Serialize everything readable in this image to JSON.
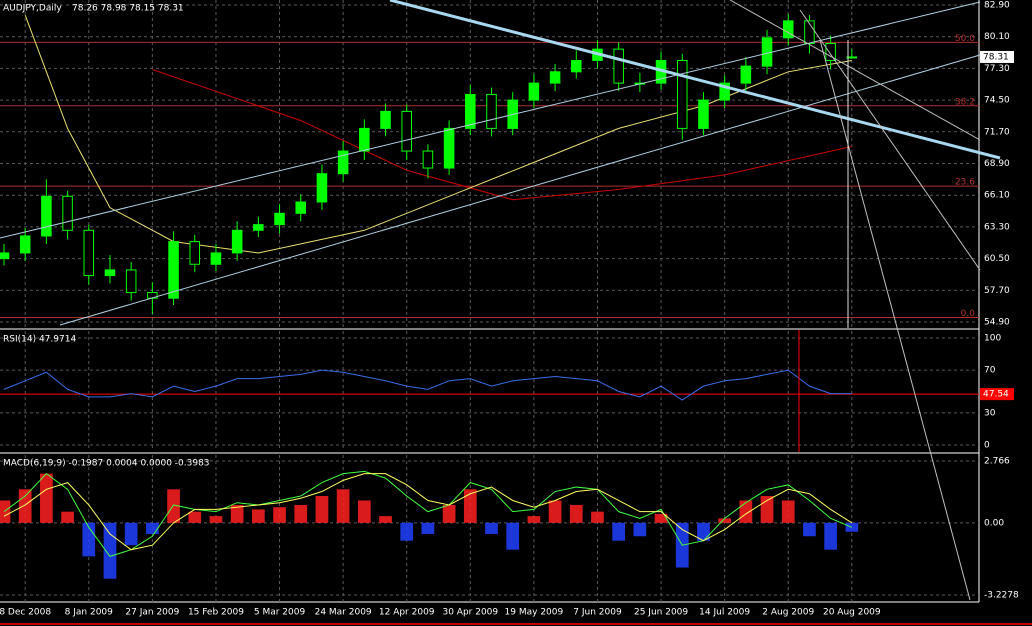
{
  "chart_data": [
    {
      "type": "candlestick",
      "title": "AUDJPY,Daily",
      "ohlc_label": "78.26 78.98 78.15 78.31",
      "up_color": "#00ff00",
      "down_color": "#000000",
      "wick_color": "#00ff00",
      "open": [
        60.5,
        61,
        62.5,
        66,
        63,
        59,
        59.5,
        57.5,
        57,
        62,
        60,
        61,
        63,
        63.5,
        64.5,
        65.5,
        68,
        70,
        72,
        73.5,
        70,
        68.5,
        72,
        75,
        72,
        74.5,
        76,
        77,
        78,
        79,
        76,
        76,
        78,
        72,
        74.5,
        76,
        77.5,
        80,
        81.5,
        79.5,
        78.26
      ],
      "high": [
        61.8,
        63.2,
        67.5,
        66.5,
        63.5,
        60.8,
        60.2,
        58.4,
        62.9,
        62.6,
        61.8,
        63.8,
        64.2,
        65.3,
        66.2,
        68.8,
        70.9,
        72.8,
        74.2,
        74.1,
        70.6,
        72.7,
        75.8,
        75.6,
        75.2,
        76.8,
        77.7,
        78.9,
        79.8,
        79.6,
        76.9,
        78.8,
        78.6,
        75.2,
        76.7,
        78.3,
        80.7,
        82.1,
        82.0,
        80.2,
        78.98
      ],
      "low": [
        59.9,
        60.3,
        61.8,
        62.2,
        58.2,
        58.3,
        56.8,
        55.6,
        56.4,
        59.3,
        59.4,
        60.3,
        62.4,
        62.7,
        63.8,
        64.8,
        67.3,
        69.2,
        71.3,
        69.2,
        67.6,
        67.9,
        71.4,
        71.3,
        71.4,
        73.8,
        75.3,
        76.4,
        77.3,
        75.3,
        75.2,
        75.4,
        71.0,
        71.4,
        73.8,
        75.3,
        76.8,
        79.3,
        78.6,
        77.2,
        78.15
      ],
      "close": [
        61,
        62.5,
        66,
        63,
        59,
        59.5,
        57.5,
        57,
        62,
        60,
        61,
        63,
        63.5,
        64.5,
        65.5,
        68,
        70,
        72,
        73.5,
        70,
        68.5,
        72,
        75,
        72,
        74.5,
        76,
        77,
        78,
        79,
        76,
        76,
        78,
        72,
        74.5,
        76,
        77.5,
        80,
        81.5,
        79.5,
        78,
        78.31
      ],
      "overlays": [
        {
          "color": "#cc0000",
          "x": [
            7,
            14,
            19,
            24,
            29,
            34,
            40
          ],
          "values": [
            77.2,
            72.7,
            68.3,
            65.7,
            66.6,
            67.9,
            70.4
          ]
        },
        {
          "color": "#e8e070",
          "x": [
            1,
            3,
            5,
            8,
            12,
            17,
            21,
            25,
            29,
            33,
            37,
            40
          ],
          "values": [
            82,
            72,
            65,
            62,
            61,
            63,
            66,
            69,
            72,
            74,
            77,
            78
          ]
        }
      ],
      "levels": [
        {
          "value": 79.6,
          "label": "50.0"
        },
        {
          "value": 74.0,
          "label": "38.2"
        },
        {
          "value": 66.9,
          "label": "23.6"
        },
        {
          "value": 55.3,
          "label": "0.0"
        }
      ],
      "level_color": "#b03030",
      "last": 78.31,
      "xlim": [
        0,
        46
      ],
      "ylim": [
        54.9,
        82.9
      ],
      "yticks": [
        {
          "value": 82.9,
          "label": "82.90"
        },
        {
          "value": 80.1,
          "label": "80.10"
        },
        {
          "value": 77.3,
          "label": "77.30"
        },
        {
          "value": 74.5,
          "label": "74.50"
        },
        {
          "value": 71.7,
          "label": "71.70"
        },
        {
          "value": 68.9,
          "label": "68.90"
        },
        {
          "value": 66.1,
          "label": "66.10"
        },
        {
          "value": 63.3,
          "label": "63.30"
        },
        {
          "value": 60.5,
          "label": "60.50"
        },
        {
          "value": 57.7,
          "label": "57.70"
        },
        {
          "value": 54.9,
          "label": "54.90"
        }
      ],
      "grid": true
    },
    {
      "type": "line",
      "title": "RSI(14) 47.9714",
      "color": "#3a6ee8",
      "values": [
        52,
        60,
        68,
        52,
        45,
        45,
        48,
        45,
        55,
        50,
        55,
        62,
        62,
        64,
        66,
        70,
        68,
        64,
        60,
        55,
        52,
        60,
        62,
        55,
        60,
        62,
        64,
        62,
        60,
        50,
        45,
        55,
        42,
        55,
        60,
        62,
        66,
        70,
        55,
        48,
        47.97
      ],
      "level": 47.54,
      "level_color": "#ff0000",
      "xlim": [
        0,
        46
      ],
      "ylim": [
        0,
        100
      ],
      "yticks": [
        100,
        70,
        30,
        0
      ],
      "grid": true
    },
    {
      "type": "macd",
      "title": "MACD(6,19,9) -0.1987 0.0004 0.0000 -0.3983",
      "histogram": [
        1.0,
        1.5,
        2.2,
        0.5,
        -1.5,
        -2.5,
        -1.0,
        -0.5,
        1.5,
        0.5,
        0.3,
        0.8,
        0.6,
        0.7,
        0.8,
        1.2,
        1.5,
        1.0,
        0.3,
        -0.8,
        -0.5,
        0.8,
        1.5,
        -0.5,
        -1.2,
        0.3,
        1.0,
        0.8,
        0.5,
        -0.8,
        -0.6,
        0.4,
        -2.0,
        -0.8,
        0.2,
        1.0,
        1.2,
        1.0,
        -0.6,
        -1.2,
        -0.4
      ],
      "up_color": "#ff2020",
      "down_color": "#2040ff",
      "series": [
        {
          "color": "#40ff40",
          "values": [
            0.5,
            1.2,
            2.2,
            1.5,
            -0.2,
            -1.5,
            -1.2,
            -0.6,
            0.8,
            0.6,
            0.5,
            0.9,
            0.8,
            1.0,
            1.2,
            1.8,
            2.2,
            2.3,
            2.0,
            1.2,
            0.5,
            0.8,
            1.8,
            1.5,
            0.5,
            0.6,
            1.4,
            1.6,
            1.5,
            0.5,
            0.2,
            0.6,
            -1.0,
            -0.8,
            0.2,
            0.9,
            1.5,
            1.7,
            1.0,
            0.2,
            -0.1987
          ]
        },
        {
          "color": "#ffff60",
          "values": [
            0.3,
            0.8,
            1.5,
            1.8,
            0.8,
            -0.5,
            -1.2,
            -1.0,
            0.0,
            0.6,
            0.6,
            0.7,
            0.8,
            0.9,
            1.1,
            1.4,
            1.9,
            2.2,
            2.2,
            1.7,
            1.0,
            0.8,
            1.3,
            1.6,
            1.0,
            0.7,
            1.0,
            1.4,
            1.5,
            1.0,
            0.5,
            0.5,
            -0.3,
            -0.8,
            -0.3,
            0.4,
            1.0,
            1.5,
            1.3,
            0.6,
            0.0
          ]
        }
      ],
      "xlim": [
        0,
        46
      ],
      "ylim": [
        -3.2278,
        2.766
      ],
      "yticks": [
        2.766,
        {
          "value": 0,
          "label": "0.00"
        },
        -3.2278
      ],
      "xticks": [
        {
          "value": 1,
          "label": "8 Dec 2008"
        },
        {
          "value": 4,
          "label": "8 Jan 2009"
        },
        {
          "value": 7,
          "label": "27 Jan 2009"
        },
        {
          "value": 10,
          "label": "15 Feb 2009"
        },
        {
          "value": 13,
          "label": "5 Mar 2009"
        },
        {
          "value": 16,
          "label": "24 Mar 2009"
        },
        {
          "value": 19,
          "label": "12 Apr 2009"
        },
        {
          "value": 22,
          "label": "30 Apr 2009"
        },
        {
          "value": 25,
          "label": "19 May 2009"
        },
        {
          "value": 28,
          "label": "7 Jun 2009"
        },
        {
          "value": 31,
          "label": "25 Jun 2009"
        },
        {
          "value": 34,
          "label": "14 Jul 2009"
        },
        {
          "value": 37,
          "label": "2 Aug 2009"
        },
        {
          "value": 40,
          "label": "20 Aug 2009"
        }
      ],
      "grid": true
    }
  ]
}
